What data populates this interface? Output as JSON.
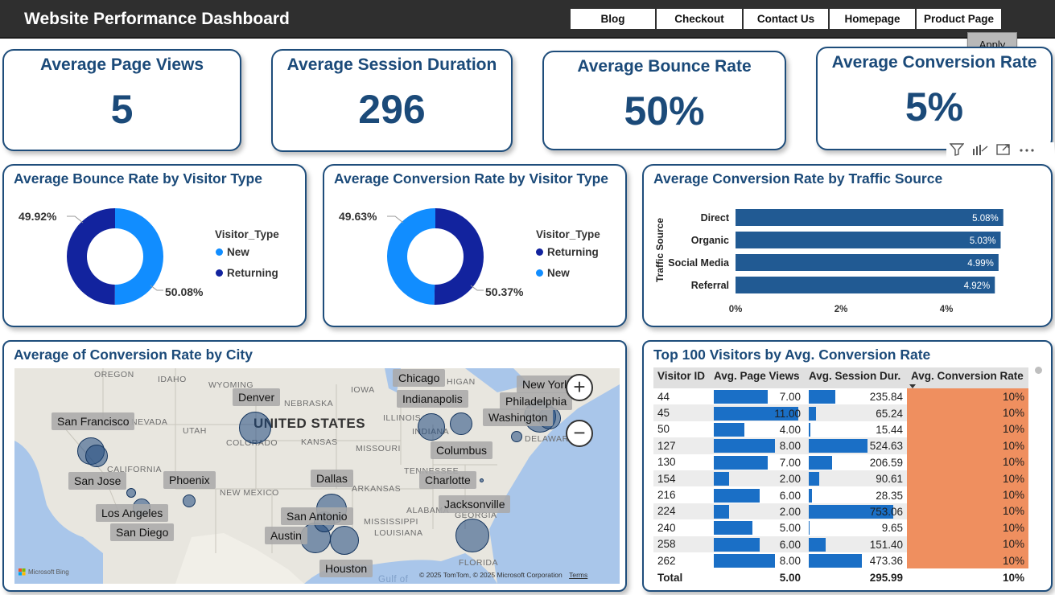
{
  "header": {
    "title": "Website Performance Dashboard",
    "nav": [
      "Blog",
      "Checkout",
      "Contact Us",
      "Homepage",
      "Product Page"
    ],
    "apply_label": "Apply"
  },
  "kpis": [
    {
      "title": "Average Page Views",
      "value": "5"
    },
    {
      "title": "Average Session Duration",
      "value": "296"
    },
    {
      "title": "Average Bounce Rate",
      "value": "50%"
    },
    {
      "title": "Average Conversion Rate",
      "value": "5%"
    }
  ],
  "toolbar_icons": [
    "filter-icon",
    "drill-icon",
    "focus-mode-icon",
    "more-options-icon"
  ],
  "bounce_by_visitor": {
    "title": "Average Bounce Rate by Visitor Type",
    "legend_title": "Visitor_Type",
    "legend": [
      {
        "label": "New",
        "color": "#118dff"
      },
      {
        "label": "Returning",
        "color": "#12239e"
      }
    ],
    "labels": {
      "returning": "49.92%",
      "new": "50.08%"
    }
  },
  "conversion_by_visitor": {
    "title": "Average Conversion Rate by Visitor Type",
    "legend_title": "Visitor_Type",
    "legend": [
      {
        "label": "Returning",
        "color": "#12239e"
      },
      {
        "label": "New",
        "color": "#118dff"
      }
    ],
    "labels": {
      "new": "49.63%",
      "returning": "50.37%"
    }
  },
  "traffic_source": {
    "title": "Average Conversion Rate by Traffic Source",
    "y_label": "Traffic Source",
    "ticks": [
      "0%",
      "2%",
      "4%"
    ]
  },
  "map": {
    "title": "Average of Conversion Rate by City",
    "cities": [
      "Chicago",
      "New York",
      "Denver",
      "Indianapolis",
      "Philadelphia",
      "San Francisco",
      "Washington",
      "Columbus",
      "San Jose",
      "Phoenix",
      "Dallas",
      "Charlotte",
      "Jacksonville",
      "Los Angeles",
      "San Antonio",
      "San Diego",
      "Austin",
      "Houston"
    ],
    "geo_labels": [
      "OREGON",
      "IDAHO",
      "WYOMING",
      "NEBRASKA",
      "IOWA",
      "ILLINOIS",
      "UNITED STATES",
      "UTAH",
      "COLORADO",
      "KANSAS",
      "MISSOURI",
      "INDIANA",
      "NEVADA",
      "CALIFORNIA",
      "NEW MEXICO",
      "ARKANSAS",
      "TENNESSEE",
      "ALABAMA",
      "MISSISSIPPI",
      "GEORGIA",
      "FLORIDA",
      "LOUISIANA",
      "DELAWARE",
      "Gulf of",
      "HIGAN"
    ],
    "attribution": "© 2025 TomTom, © 2025 Microsoft Corporation",
    "terms": "Terms",
    "bing": "Microsoft Bing"
  },
  "top_visitors": {
    "title": "Top 100 Visitors by Avg. Conversion Rate",
    "columns": [
      "Visitor ID",
      "Avg. Page Views",
      "Avg. Session Dur.",
      "Avg. Conversion Rate"
    ],
    "total": {
      "label": "Total",
      "page_views": "5.00",
      "session": "295.99",
      "conversion": "10%"
    }
  },
  "chart_data": [
    {
      "type": "pie",
      "title": "Average Bounce Rate by Visitor Type",
      "categories": [
        "New",
        "Returning"
      ],
      "values": [
        50.08,
        49.92
      ],
      "unit": "%"
    },
    {
      "type": "pie",
      "title": "Average Conversion Rate by Visitor Type",
      "categories": [
        "Returning",
        "New"
      ],
      "values": [
        50.37,
        49.63
      ],
      "unit": "%"
    },
    {
      "type": "bar",
      "title": "Average Conversion Rate by Traffic Source",
      "ylabel": "Traffic Source",
      "categories": [
        "Direct",
        "Organic",
        "Social Media",
        "Referral"
      ],
      "values": [
        5.08,
        5.03,
        4.99,
        4.92
      ],
      "labels": [
        "5.08%",
        "5.03%",
        "4.99%",
        "4.92%"
      ],
      "xlim": [
        0,
        6
      ],
      "xticks": [
        "0%",
        "2%",
        "4%"
      ]
    },
    {
      "type": "table",
      "title": "Top 100 Visitors by Avg. Conversion Rate",
      "columns": [
        "Visitor ID",
        "Avg. Page Views",
        "Avg. Session Dur.",
        "Avg. Conversion Rate"
      ],
      "rows": [
        [
          "44",
          "7.00",
          "235.84",
          "10%"
        ],
        [
          "45",
          "11.00",
          "65.24",
          "10%"
        ],
        [
          "50",
          "4.00",
          "15.44",
          "10%"
        ],
        [
          "127",
          "8.00",
          "524.63",
          "10%"
        ],
        [
          "130",
          "7.00",
          "206.59",
          "10%"
        ],
        [
          "154",
          "2.00",
          "90.61",
          "10%"
        ],
        [
          "216",
          "6.00",
          "28.35",
          "10%"
        ],
        [
          "224",
          "2.00",
          "753.06",
          "10%"
        ],
        [
          "240",
          "5.00",
          "9.65",
          "10%"
        ],
        [
          "258",
          "6.00",
          "151.40",
          "10%"
        ],
        [
          "262",
          "8.00",
          "473.36",
          "10%"
        ]
      ],
      "page_views_max": 11,
      "session_max": 753.06
    }
  ]
}
